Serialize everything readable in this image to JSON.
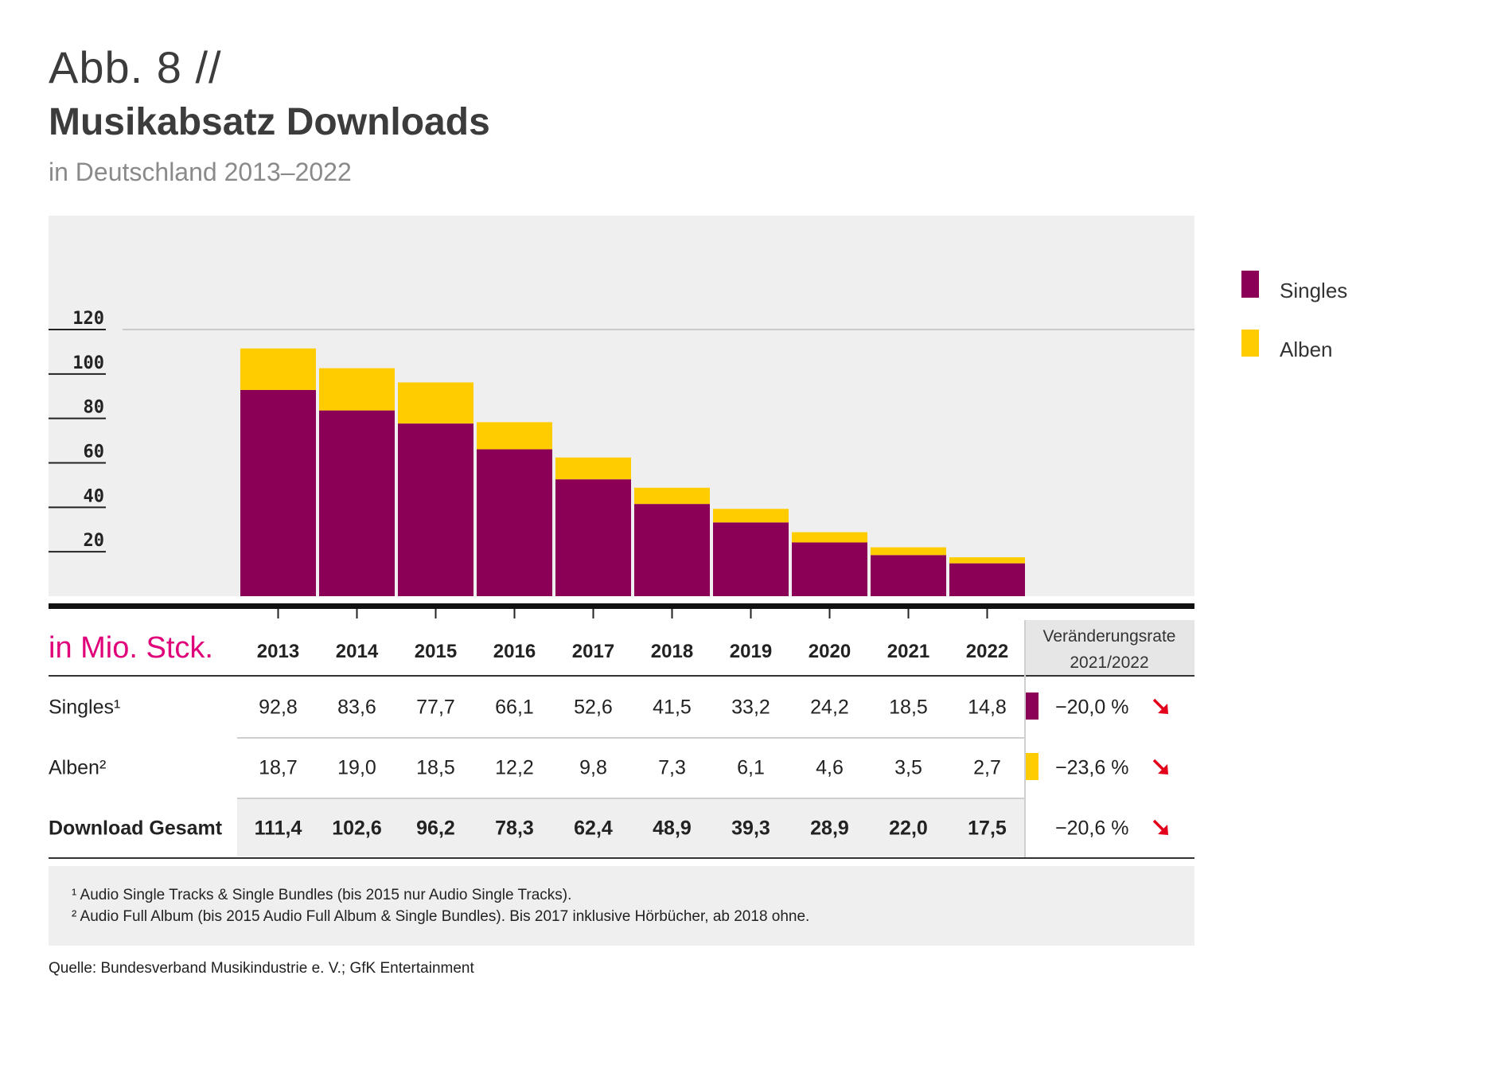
{
  "header": {
    "figure_label": "Abb. 8 //",
    "title": "Musikabsatz Downloads",
    "subtitle": "in Deutschland 2013–2022"
  },
  "colors": {
    "singles": "#8b0056",
    "alben": "#ffcc00",
    "panel": "#efefef",
    "unit_accent": "#e0007a",
    "arrow": "#e2001a"
  },
  "chart_data": {
    "type": "bar",
    "stacked": true,
    "categories": [
      "2013",
      "2014",
      "2015",
      "2016",
      "2017",
      "2018",
      "2019",
      "2020",
      "2021",
      "2022"
    ],
    "series": [
      {
        "name": "Singles",
        "values": [
          92.8,
          83.6,
          77.7,
          66.1,
          52.6,
          41.5,
          33.2,
          24.2,
          18.5,
          14.8
        ]
      },
      {
        "name": "Alben",
        "values": [
          18.7,
          19.0,
          18.5,
          12.2,
          9.8,
          7.3,
          6.1,
          4.6,
          3.5,
          2.7
        ]
      }
    ],
    "y_ticks": [
      20,
      40,
      60,
      80,
      100,
      120
    ],
    "ylim": [
      0,
      120
    ],
    "legend_position": "right"
  },
  "table": {
    "unit": "in Mio. Stck.",
    "rate_header_line1": "Veränderungsrate",
    "rate_header_line2": "2021/2022",
    "rows": [
      {
        "label": "Singles¹",
        "values": [
          "92,8",
          "83,6",
          "77,7",
          "66,1",
          "52,6",
          "41,5",
          "33,2",
          "24,2",
          "18,5",
          "14,8"
        ],
        "rate": "−20,0 %",
        "bold": false,
        "swatch": "singles"
      },
      {
        "label": "Alben²",
        "values": [
          "18,7",
          "19,0",
          "18,5",
          "12,2",
          "9,8",
          "7,3",
          "6,1",
          "4,6",
          "3,5",
          "2,7"
        ],
        "rate": "−23,6 %",
        "bold": false,
        "swatch": "alben"
      },
      {
        "label": "Download Gesamt",
        "values": [
          "111,4",
          "102,6",
          "96,2",
          "78,3",
          "62,4",
          "48,9",
          "39,3",
          "28,9",
          "22,0",
          "17,5"
        ],
        "rate": "−20,6 %",
        "bold": true,
        "swatch": null
      }
    ]
  },
  "footnotes": [
    "¹ Audio Single Tracks & Single Bundles (bis 2015 nur Audio Single Tracks).",
    "² Audio Full Album (bis 2015 Audio Full Album & Single Bundles). Bis 2017 inklusive Hörbücher, ab 2018 ohne."
  ],
  "source": "Quelle: Bundesverband Musikindustrie e. V.; GfK Entertainment"
}
